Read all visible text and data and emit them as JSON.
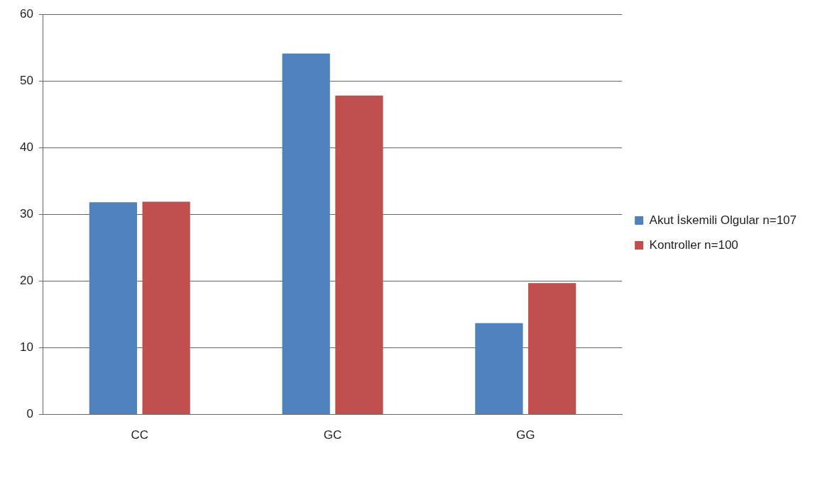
{
  "chart_data": {
    "type": "bar",
    "categories": [
      "CC",
      "GC",
      "GG"
    ],
    "series": [
      {
        "name": "Akut İskemili Olgular n=107",
        "color": "#4f81bd",
        "values": [
          31.8,
          54.1,
          13.7
        ]
      },
      {
        "name": "Kontroller n=100",
        "color": "#c0504d",
        "values": [
          31.9,
          47.8,
          19.7
        ]
      }
    ],
    "ylim": [
      0,
      60
    ],
    "yticks": [
      0,
      10,
      20,
      30,
      40,
      50,
      60
    ],
    "grid": "y",
    "legend": "right"
  }
}
